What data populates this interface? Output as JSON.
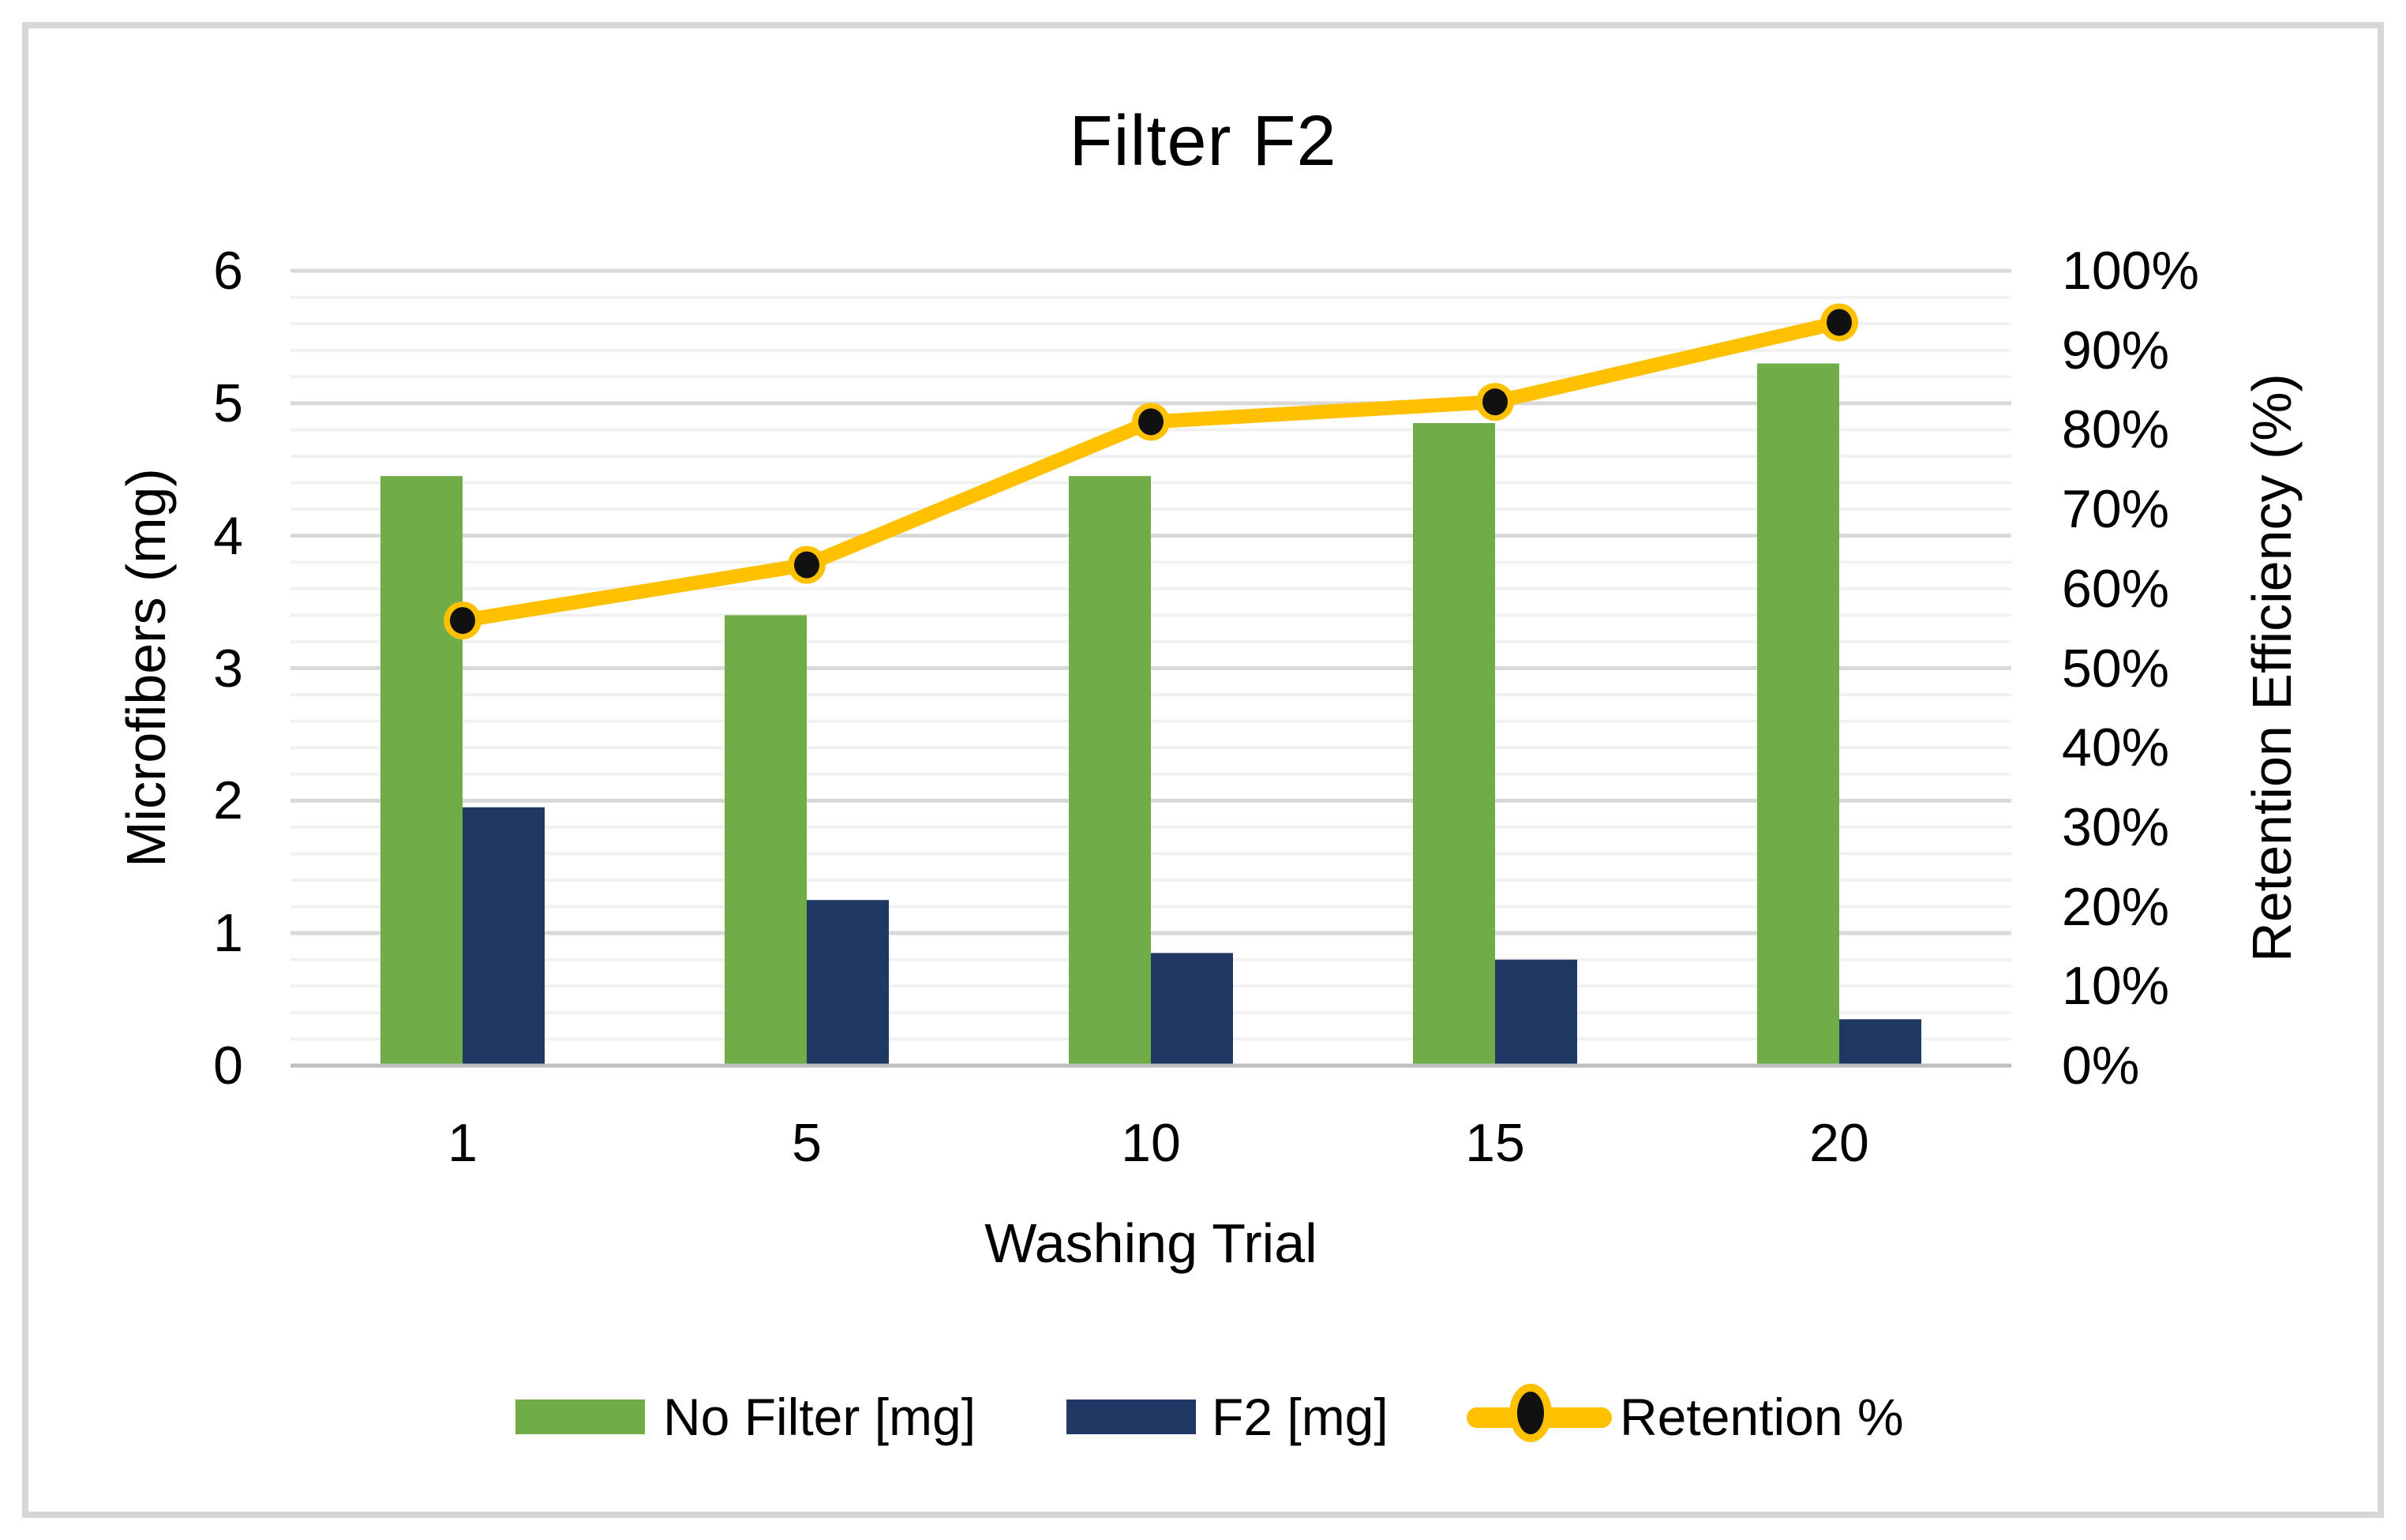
{
  "chart_data": {
    "type": "bar",
    "subtype": "combo-bar-line-dual-axis",
    "title": "Filter F2",
    "xlabel": "Washing Trial",
    "ylabel_left": "Microfibers (mg)",
    "ylabel_right": "Retention Efficiency (%)",
    "categories": [
      "1",
      "5",
      "10",
      "15",
      "20"
    ],
    "series": [
      {
        "name": "No Filter [mg]",
        "kind": "bar",
        "axis": "left",
        "color": "#70AD47",
        "values": [
          4.45,
          3.4,
          4.45,
          4.85,
          5.3
        ]
      },
      {
        "name": "F2 [mg]",
        "kind": "bar",
        "axis": "left",
        "color": "#203864",
        "values": [
          1.95,
          1.25,
          0.85,
          0.8,
          0.35
        ]
      },
      {
        "name": "Retention %",
        "kind": "line",
        "axis": "right",
        "color": "#FFC000",
        "marker_color": "#111111",
        "values": [
          56,
          63,
          81,
          83.5,
          93.5
        ]
      }
    ],
    "ylim_left": [
      0,
      6
    ],
    "ylim_right": [
      0,
      100
    ],
    "left_ticks": [
      "0",
      "1",
      "2",
      "3",
      "4",
      "5",
      "6"
    ],
    "right_ticks": [
      "0%",
      "10%",
      "20%",
      "30%",
      "40%",
      "50%",
      "60%",
      "70%",
      "80%",
      "90%",
      "100%"
    ],
    "grid": {
      "minor_step_mg": 0.2,
      "major_step_mg": 1.0,
      "minor_color": "#f1f1f1",
      "major_color": "#d9d9d9",
      "axis_line_color": "#bfbfbf"
    },
    "legend_position": "bottom"
  }
}
